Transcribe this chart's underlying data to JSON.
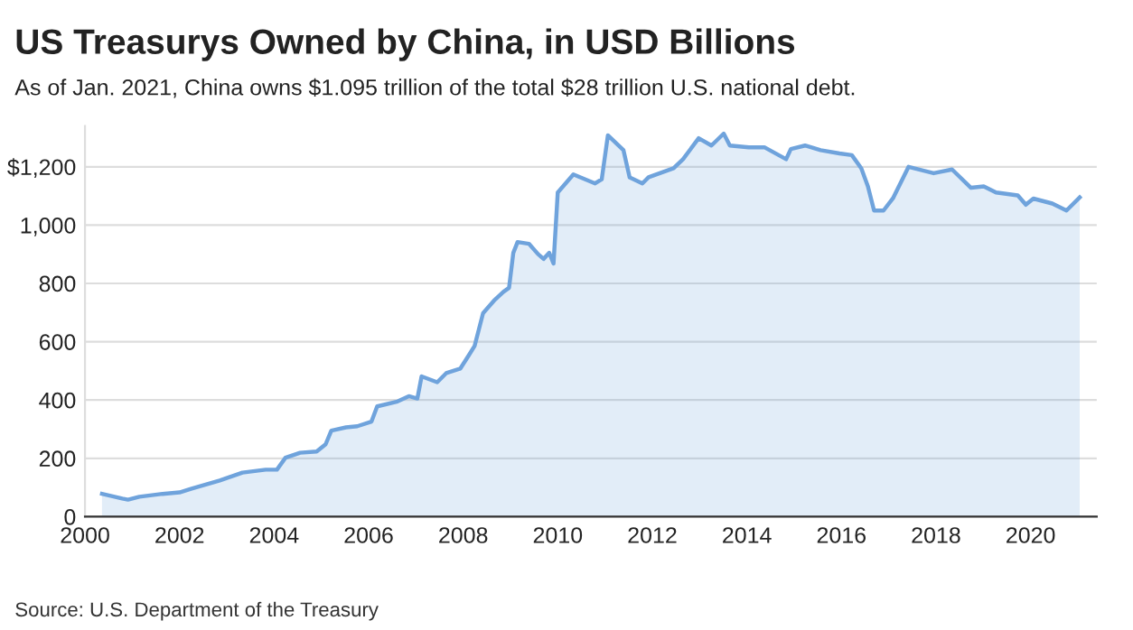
{
  "chart_data": {
    "type": "area",
    "title": "US Treasurys Owned by China, in USD Billions",
    "subtitle": "As of Jan. 2021, China owns $1.095 trillion of the total $28 trillion U.S. national debt.",
    "annotations": [
      "Source: U.S. Department of the Treasury"
    ],
    "x": [
      2000.36,
      2000.79,
      2000.91,
      2001.15,
      2001.64,
      2002.0,
      2002.24,
      2002.85,
      2003.33,
      2003.82,
      2004.06,
      2004.24,
      2004.55,
      2004.9,
      2005.09,
      2005.21,
      2005.52,
      2005.76,
      2006.06,
      2006.18,
      2006.61,
      2006.85,
      2007.03,
      2007.12,
      2007.45,
      2007.64,
      2007.94,
      2008.12,
      2008.24,
      2008.42,
      2008.67,
      2008.85,
      2008.97,
      2009.06,
      2009.15,
      2009.39,
      2009.58,
      2009.7,
      2009.82,
      2009.91,
      2010.0,
      2010.33,
      2010.79,
      2010.93,
      2011.06,
      2011.39,
      2011.52,
      2011.79,
      2011.92,
      2012.45,
      2012.65,
      2012.98,
      2013.25,
      2013.51,
      2013.64,
      2014.04,
      2014.37,
      2014.83,
      2014.93,
      2015.23,
      2015.56,
      2015.96,
      2016.22,
      2016.42,
      2016.56,
      2016.69,
      2016.89,
      2017.09,
      2017.42,
      2017.95,
      2018.34,
      2018.74,
      2019.01,
      2019.27,
      2019.73,
      2019.9,
      2020.06,
      2020.46,
      2020.76,
      2021.04
    ],
    "series": [
      {
        "color": "#6fa3dc",
        "values": [
          78,
          62,
          58,
          68,
          78,
          83,
          95,
          124,
          151,
          161,
          161,
          202,
          219,
          223,
          248,
          295,
          306,
          310,
          326,
          378,
          395,
          413,
          405,
          481,
          461,
          492,
          508,
          554,
          585,
          698,
          744,
          771,
          785,
          905,
          942,
          936,
          901,
          884,
          905,
          868,
          1112,
          1174,
          1143,
          1157,
          1308,
          1257,
          1164,
          1143,
          1164,
          1195,
          1226,
          1298,
          1273,
          1314,
          1273,
          1267,
          1267,
          1226,
          1261,
          1273,
          1257,
          1246,
          1240,
          1195,
          1133,
          1050,
          1050,
          1092,
          1200,
          1178,
          1191,
          1128,
          1133,
          1112,
          1102,
          1070,
          1091,
          1074,
          1050,
          1095
        ]
      }
    ],
    "xlim": [
      2000,
      2021.4
    ],
    "xticks": [
      2000,
      2002,
      2004,
      2006,
      2008,
      2010,
      2012,
      2014,
      2016,
      2018,
      2020
    ],
    "ylim": [
      0,
      1340
    ],
    "yticks": [
      0,
      200,
      400,
      600,
      800,
      {
        "value": 1000,
        "label": "1,000"
      },
      {
        "value": 1200,
        "label": "$1,200"
      }
    ],
    "grid": "y",
    "legend": false
  }
}
